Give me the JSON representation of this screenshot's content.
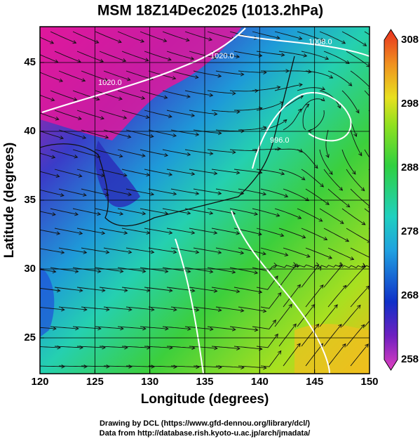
{
  "title": "MSM 18Z14Dec2025 (1013.2hPa)",
  "x_axis": {
    "label": "Longitude (degrees)",
    "lim": [
      120,
      150
    ],
    "ticks": [
      120,
      125,
      130,
      135,
      140,
      145,
      150
    ]
  },
  "y_axis": {
    "label": "Latitude  (degrees)",
    "lim": [
      22.4,
      47.6
    ],
    "ticks": [
      25,
      30,
      35,
      40,
      45
    ]
  },
  "colorbar": {
    "lim": [
      258,
      308
    ],
    "ticks": [
      258,
      268,
      278,
      288,
      298,
      308
    ]
  },
  "isobar_labels": [
    "1020.0",
    "1020.0",
    "1008.0",
    "996.0"
  ],
  "credits": [
    "Drawing by DCL (https://www.gfd-dennou.org/library/dcl/)",
    "Data from http://database.rish.kyoto-u.ac.jp/arch/jmadata/"
  ]
}
